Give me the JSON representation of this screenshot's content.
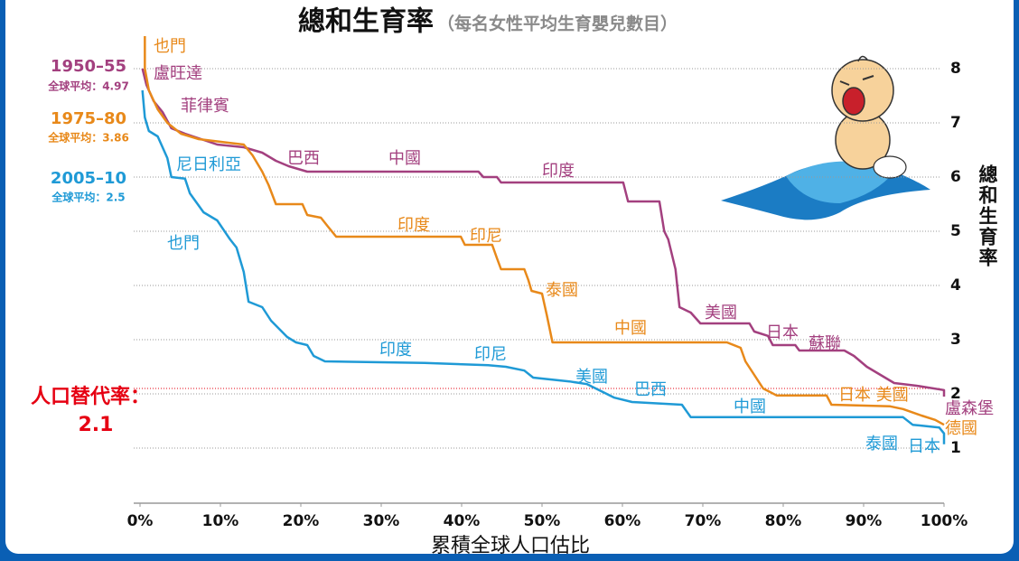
{
  "chart_data": {
    "type": "line",
    "title": "總和生育率",
    "subtitle": "（每名女性平均生育嬰兒數目）",
    "xlabel": "累積全球人口估比",
    "ylabel": "總和生育率",
    "xlim": [
      0,
      100
    ],
    "ylim": [
      0,
      8.6
    ],
    "xticks": [
      {
        "value": 0,
        "label": "0%"
      },
      {
        "value": 10,
        "label": "10%"
      },
      {
        "value": 20,
        "label": "20%"
      },
      {
        "value": 30,
        "label": "30%"
      },
      {
        "value": 40,
        "label": "40%"
      },
      {
        "value": 50,
        "label": "50%"
      },
      {
        "value": 60,
        "label": "60%"
      },
      {
        "value": 70,
        "label": "70%"
      },
      {
        "value": 80,
        "label": "80%"
      },
      {
        "value": 90,
        "label": "90%"
      },
      {
        "value": 100,
        "label": "100%"
      }
    ],
    "yticks": [
      1,
      2,
      3,
      4,
      5,
      6,
      7,
      8
    ],
    "grid": true,
    "reference_line": {
      "value": 2.1,
      "label": "人口替代率：",
      "color": "#e60012"
    },
    "series": [
      {
        "name": "1950–55",
        "average_note": "全球平均：4.97",
        "color": "#a3407f",
        "x": [
          0.3,
          0.8,
          1.7,
          2.8,
          3.9,
          5.6,
          9.6,
          12.9,
          15.2,
          16.9,
          18.5,
          20.8,
          42.1,
          42.7,
          44.4,
          44.9,
          60.1,
          60.7,
          64.6,
          65.2,
          65.7,
          66.6,
          67.1,
          68.5,
          69.7,
          75.8,
          76.4,
          78.1,
          78.7,
          81.5,
          82.0,
          87.6,
          88.8,
          90.4,
          92.1,
          93.8,
          96.6,
          100,
          100
        ],
        "values": [
          8.0,
          7.7,
          7.4,
          7.2,
          6.9,
          6.8,
          6.6,
          6.55,
          6.45,
          6.3,
          6.2,
          6.1,
          6.1,
          6.0,
          6.0,
          5.9,
          5.9,
          5.55,
          5.55,
          5.0,
          4.85,
          4.3,
          3.6,
          3.5,
          3.3,
          3.3,
          3.15,
          3.07,
          2.9,
          2.9,
          2.8,
          2.8,
          2.7,
          2.5,
          2.35,
          2.2,
          2.15,
          2.07,
          1.95
        ],
        "labels": [
          "盧旺達",
          "菲律賓",
          "巴西",
          "中國",
          "印度",
          "美國",
          "日本",
          "蘇聯",
          "盧森堡"
        ]
      },
      {
        "name": "1975–80",
        "average_note": "全球平均：3.86",
        "color": "#e8891a",
        "x": [
          0.6,
          0.6,
          1.1,
          2.2,
          3.4,
          5.1,
          7.3,
          12.9,
          14.0,
          15.2,
          16.0,
          16.9,
          20.2,
          20.8,
          22.5,
          23.3,
          24.4,
          39.9,
          40.4,
          43.8,
          44.4,
          44.9,
          47.8,
          48.3,
          48.7,
          50.0,
          50.6,
          51.3,
          73.0,
          74.7,
          75.3,
          76.4,
          77.5,
          79.2,
          85.4,
          86.0,
          93.3,
          94.9,
          97.2,
          98.9,
          100
        ],
        "values": [
          8.6,
          8.0,
          7.6,
          7.25,
          7.0,
          6.8,
          6.7,
          6.6,
          6.4,
          6.1,
          5.85,
          5.5,
          5.5,
          5.3,
          5.25,
          5.1,
          4.9,
          4.9,
          4.75,
          4.75,
          4.5,
          4.3,
          4.3,
          4.1,
          3.9,
          3.85,
          3.45,
          2.95,
          2.95,
          2.85,
          2.6,
          2.35,
          2.1,
          1.97,
          1.97,
          1.8,
          1.77,
          1.72,
          1.6,
          1.52,
          1.43
        ],
        "labels": [
          "也門",
          "印度",
          "印尼",
          "泰國",
          "中國",
          "日本 美國",
          "德國"
        ]
      },
      {
        "name": "2005–10",
        "average_note": "全球平均：2.5",
        "color": "#1f9ad6",
        "x": [
          0.3,
          0.6,
          1.1,
          2.2,
          3.4,
          3.9,
          5.6,
          6.2,
          7.9,
          9.6,
          11.2,
          12.0,
          12.9,
          13.5,
          15.2,
          16.3,
          18.3,
          19.4,
          20.8,
          21.6,
          23.0,
          35.4,
          43.3,
          45.5,
          47.8,
          48.9,
          53.4,
          55.6,
          59.0,
          61.2,
          67.4,
          68.5,
          94.9,
          96.1,
          99.4,
          100,
          100
        ],
        "values": [
          7.6,
          7.1,
          6.85,
          6.75,
          6.35,
          6.0,
          5.97,
          5.7,
          5.35,
          5.2,
          4.85,
          4.7,
          4.25,
          3.7,
          3.6,
          3.35,
          3.05,
          2.95,
          2.9,
          2.7,
          2.6,
          2.57,
          2.53,
          2.5,
          2.43,
          2.3,
          2.23,
          2.18,
          1.93,
          1.85,
          1.8,
          1.57,
          1.57,
          1.43,
          1.38,
          1.27,
          1.07
        ],
        "labels": [
          "尼日利亞",
          "也門",
          "印度",
          "印尼",
          "美國",
          "巴西",
          "中國",
          "泰國",
          "日本"
        ]
      }
    ]
  }
}
